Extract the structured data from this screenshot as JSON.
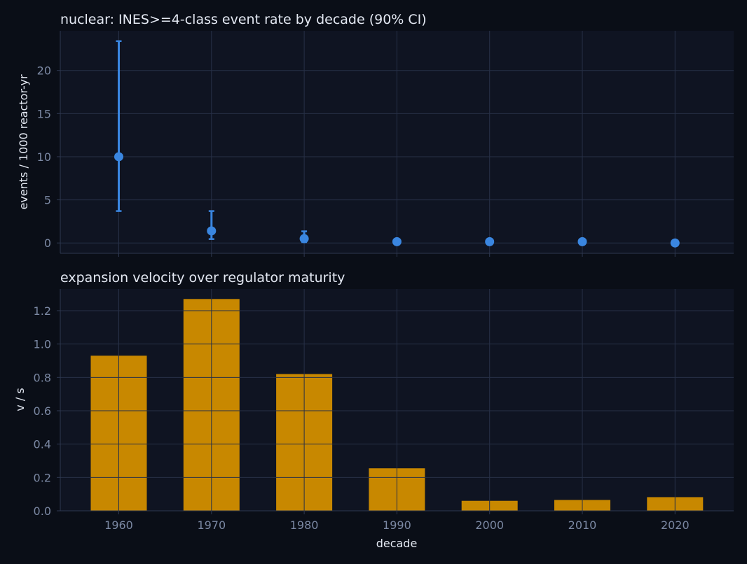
{
  "chart_data": [
    {
      "type": "scatter",
      "title": "nuclear: INES>=4-class event rate by decade (90% CI)",
      "ylabel": "events / 1000 reactor-yr",
      "xlabel": "",
      "x": [
        1960,
        1970,
        1980,
        1990,
        2000,
        2010,
        2020
      ],
      "values": [
        10.0,
        1.4,
        0.5,
        0.15,
        0.15,
        0.15,
        0.0
      ],
      "ci_low": [
        3.7,
        0.45,
        0.1,
        0.05,
        0.05,
        0.05,
        0.0
      ],
      "ci_high": [
        23.4,
        3.7,
        1.35,
        0.45,
        0.35,
        0.35,
        0.1
      ],
      "yticks": [
        0,
        5,
        10,
        15,
        20
      ],
      "ylim": [
        -1.2,
        24.6
      ],
      "grid": true,
      "color": "#3a86e0"
    },
    {
      "type": "bar",
      "title": "expansion velocity over regulator maturity",
      "ylabel": "v / s",
      "xlabel": "decade",
      "categories": [
        "1960",
        "1970",
        "1980",
        "1990",
        "2000",
        "2010",
        "2020"
      ],
      "values": [
        0.93,
        1.27,
        0.82,
        0.255,
        0.06,
        0.065,
        0.082
      ],
      "yticks": [
        0.0,
        0.2,
        0.4,
        0.6,
        0.8,
        1.0,
        1.2
      ],
      "ylim": [
        0,
        1.33
      ],
      "grid": true,
      "color": "#c88800"
    }
  ]
}
